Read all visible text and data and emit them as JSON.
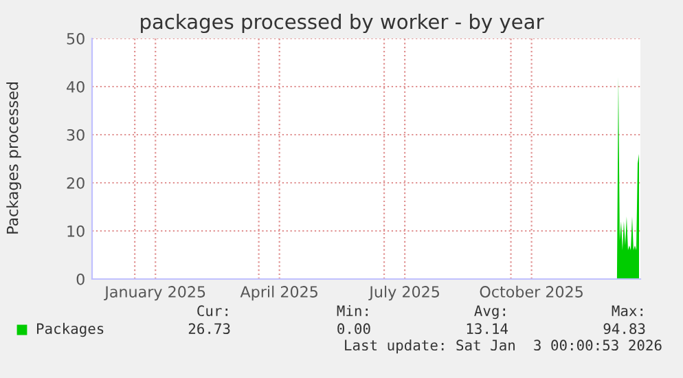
{
  "chart_data": {
    "type": "area",
    "title": "packages processed by worker - by year",
    "ylabel": "Packages processed",
    "x": [
      "2025-12-17",
      "2025-12-18",
      "2025-12-19",
      "2025-12-20",
      "2025-12-21",
      "2025-12-22",
      "2025-12-23",
      "2025-12-24",
      "2025-12-25",
      "2025-12-26",
      "2025-12-27",
      "2025-12-28",
      "2025-12-29",
      "2025-12-30",
      "2025-12-31",
      "2026-01-01",
      "2026-01-02"
    ],
    "series": [
      {
        "name": "Packages",
        "color": "#00cc00",
        "values": [
          0,
          42,
          8,
          12,
          6,
          12,
          7,
          13,
          6,
          7,
          6,
          13,
          6,
          7,
          6,
          24,
          26
        ]
      }
    ],
    "xlim": [
      "2024-12-01",
      "2026-01-03"
    ],
    "xticks": [
      {
        "value": "2025-01-01",
        "label": null
      },
      {
        "value": "2025-01-16",
        "label": "January 2025"
      },
      {
        "value": "2025-04-01",
        "label": null
      },
      {
        "value": "2025-04-16",
        "label": "April 2025"
      },
      {
        "value": "2025-07-01",
        "label": null
      },
      {
        "value": "2025-07-16",
        "label": "July 2025"
      },
      {
        "value": "2025-10-01",
        "label": null
      },
      {
        "value": "2025-10-16",
        "label": "October 2025"
      }
    ],
    "ylim": [
      0,
      50
    ],
    "yticks": [
      0,
      10,
      20,
      30,
      40,
      50
    ],
    "grid": true,
    "legend": "bottom left",
    "annotations": [
      "Cur:",
      "Min:",
      "Avg:",
      "Max:",
      "26.73",
      "0.00",
      "13.14",
      "94.83",
      "Last update: Sat Jan  3 00:00:53 2026"
    ]
  }
}
